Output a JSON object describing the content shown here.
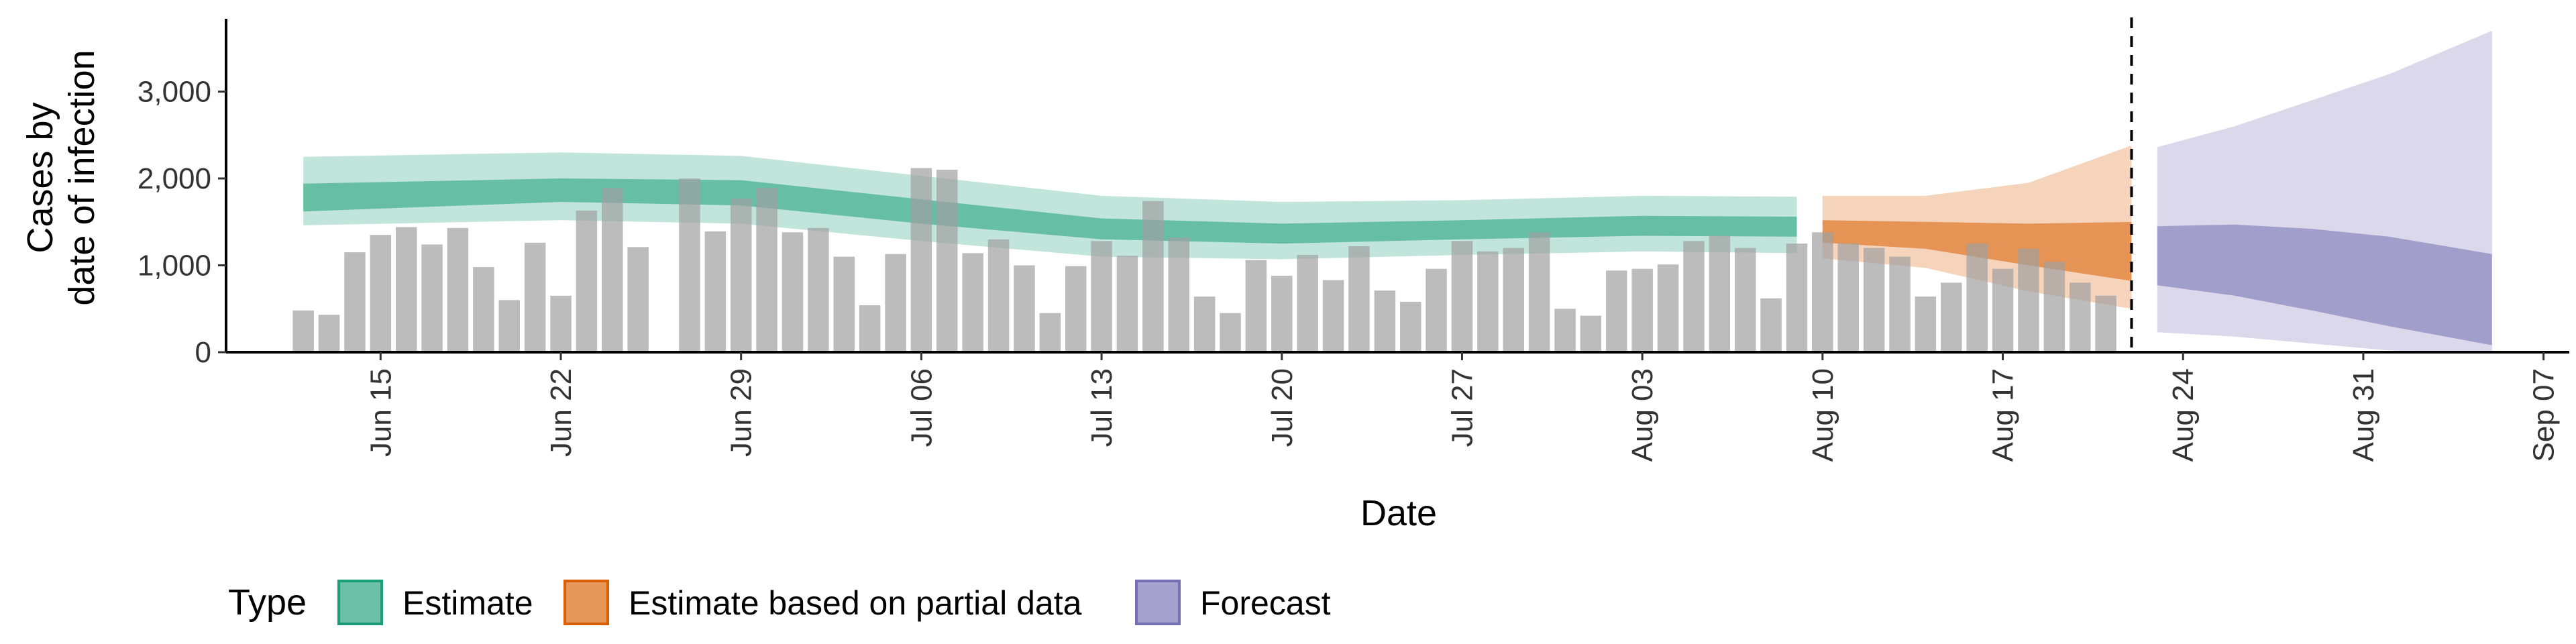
{
  "chart_data": {
    "type": "bar",
    "xlabel": "Date",
    "ylabel_line1": "Cases by",
    "ylabel_line2": "date of infection",
    "ylim": [
      0,
      3900
    ],
    "xlim": [
      "2020-06-09",
      "2020-09-08"
    ],
    "y_ticks": [
      {
        "value": 0,
        "label": "0"
      },
      {
        "value": 1000,
        "label": "1,000"
      },
      {
        "value": 2000,
        "label": "2,000"
      },
      {
        "value": 3000,
        "label": "3,000"
      }
    ],
    "x_ticks": [
      {
        "date": "2020-06-15",
        "label": "Jun 15"
      },
      {
        "date": "2020-06-22",
        "label": "Jun 22"
      },
      {
        "date": "2020-06-29",
        "label": "Jun 29"
      },
      {
        "date": "2020-07-06",
        "label": "Jul 06"
      },
      {
        "date": "2020-07-13",
        "label": "Jul 13"
      },
      {
        "date": "2020-07-20",
        "label": "Jul 20"
      },
      {
        "date": "2020-07-27",
        "label": "Jul 27"
      },
      {
        "date": "2020-08-03",
        "label": "Aug 03"
      },
      {
        "date": "2020-08-10",
        "label": "Aug 10"
      },
      {
        "date": "2020-08-17",
        "label": "Aug 17"
      },
      {
        "date": "2020-08-24",
        "label": "Aug 24"
      },
      {
        "date": "2020-08-31",
        "label": "Aug 31"
      },
      {
        "date": "2020-09-07",
        "label": "Sep 07"
      }
    ],
    "reported_cases": {
      "start_date": "2020-06-12",
      "values": [
        480,
        430,
        1150,
        1350,
        1440,
        1240,
        1430,
        980,
        600,
        1260,
        650,
        1630,
        1890,
        1210,
        0,
        2000,
        1390,
        1770,
        1890,
        1380,
        1430,
        1100,
        540,
        1130,
        2120,
        2100,
        1140,
        1300,
        1000,
        450,
        990,
        1280,
        1110,
        1740,
        1320,
        640,
        450,
        1060,
        880,
        1120,
        830,
        1220,
        710,
        580,
        960,
        1280,
        1160,
        1200,
        1380,
        500,
        420,
        940,
        960,
        1010,
        1280,
        1340,
        1200,
        620,
        1250,
        1380,
        1250,
        1200,
        1100,
        640,
        800,
        1250,
        960,
        1190,
        1040,
        800,
        650
      ]
    },
    "vertical_line_date": "2020-08-22",
    "series": [
      {
        "name": "Estimate",
        "color": "#1b9e77",
        "start_date": "2020-06-12",
        "end_date": "2020-08-09",
        "knots": [
          {
            "date": "2020-06-12",
            "low90": 1460,
            "high90": 2250,
            "low50": 1620,
            "high50": 1940
          },
          {
            "date": "2020-06-22",
            "low90": 1520,
            "high90": 2300,
            "low50": 1730,
            "high50": 2000
          },
          {
            "date": "2020-06-29",
            "low90": 1480,
            "high90": 2260,
            "low50": 1690,
            "high50": 1980
          },
          {
            "date": "2020-07-06",
            "low90": 1280,
            "high90": 2030,
            "low50": 1480,
            "high50": 1760
          },
          {
            "date": "2020-07-13",
            "low90": 1100,
            "high90": 1800,
            "low50": 1300,
            "high50": 1540
          },
          {
            "date": "2020-07-20",
            "low90": 1070,
            "high90": 1730,
            "low50": 1250,
            "high50": 1480
          },
          {
            "date": "2020-07-27",
            "low90": 1120,
            "high90": 1750,
            "low50": 1300,
            "high50": 1520
          },
          {
            "date": "2020-08-03",
            "low90": 1160,
            "high90": 1800,
            "low50": 1340,
            "high50": 1570
          },
          {
            "date": "2020-08-09",
            "low90": 1140,
            "high90": 1790,
            "low50": 1330,
            "high50": 1560
          }
        ]
      },
      {
        "name": "Estimate based on partial data",
        "color": "#d95f02",
        "start_date": "2020-08-10",
        "end_date": "2020-08-22",
        "knots": [
          {
            "date": "2020-08-10",
            "low90": 1080,
            "high90": 1800,
            "low50": 1260,
            "high50": 1520
          },
          {
            "date": "2020-08-14",
            "low90": 970,
            "high90": 1800,
            "low50": 1190,
            "high50": 1500
          },
          {
            "date": "2020-08-18",
            "low90": 700,
            "high90": 1950,
            "low50": 1000,
            "high50": 1480
          },
          {
            "date": "2020-08-22",
            "low90": 500,
            "high90": 2380,
            "low50": 820,
            "high50": 1500
          }
        ]
      },
      {
        "name": "Forecast",
        "color": "#7570b3",
        "start_date": "2020-08-23",
        "end_date": "2020-09-05",
        "knots": [
          {
            "date": "2020-08-23",
            "low90": 230,
            "high90": 2360,
            "low50": 770,
            "high50": 1450
          },
          {
            "date": "2020-08-26",
            "low90": 180,
            "high90": 2600,
            "low50": 650,
            "high50": 1470
          },
          {
            "date": "2020-08-29",
            "low90": 100,
            "high90": 2900,
            "low50": 480,
            "high50": 1420
          },
          {
            "date": "2020-09-01",
            "low90": 20,
            "high90": 3200,
            "low50": 300,
            "high50": 1330
          },
          {
            "date": "2020-09-05",
            "low90": 0,
            "high90": 3700,
            "low50": 80,
            "high50": 1130
          }
        ]
      }
    ],
    "legend": {
      "title": "Type",
      "position": "bottom",
      "entries": [
        {
          "label": "Estimate",
          "color": "#1b9e77"
        },
        {
          "label": "Estimate based on partial data",
          "color": "#d95f02"
        },
        {
          "label": "Forecast",
          "color": "#7570b3"
        }
      ]
    },
    "grid": false
  }
}
